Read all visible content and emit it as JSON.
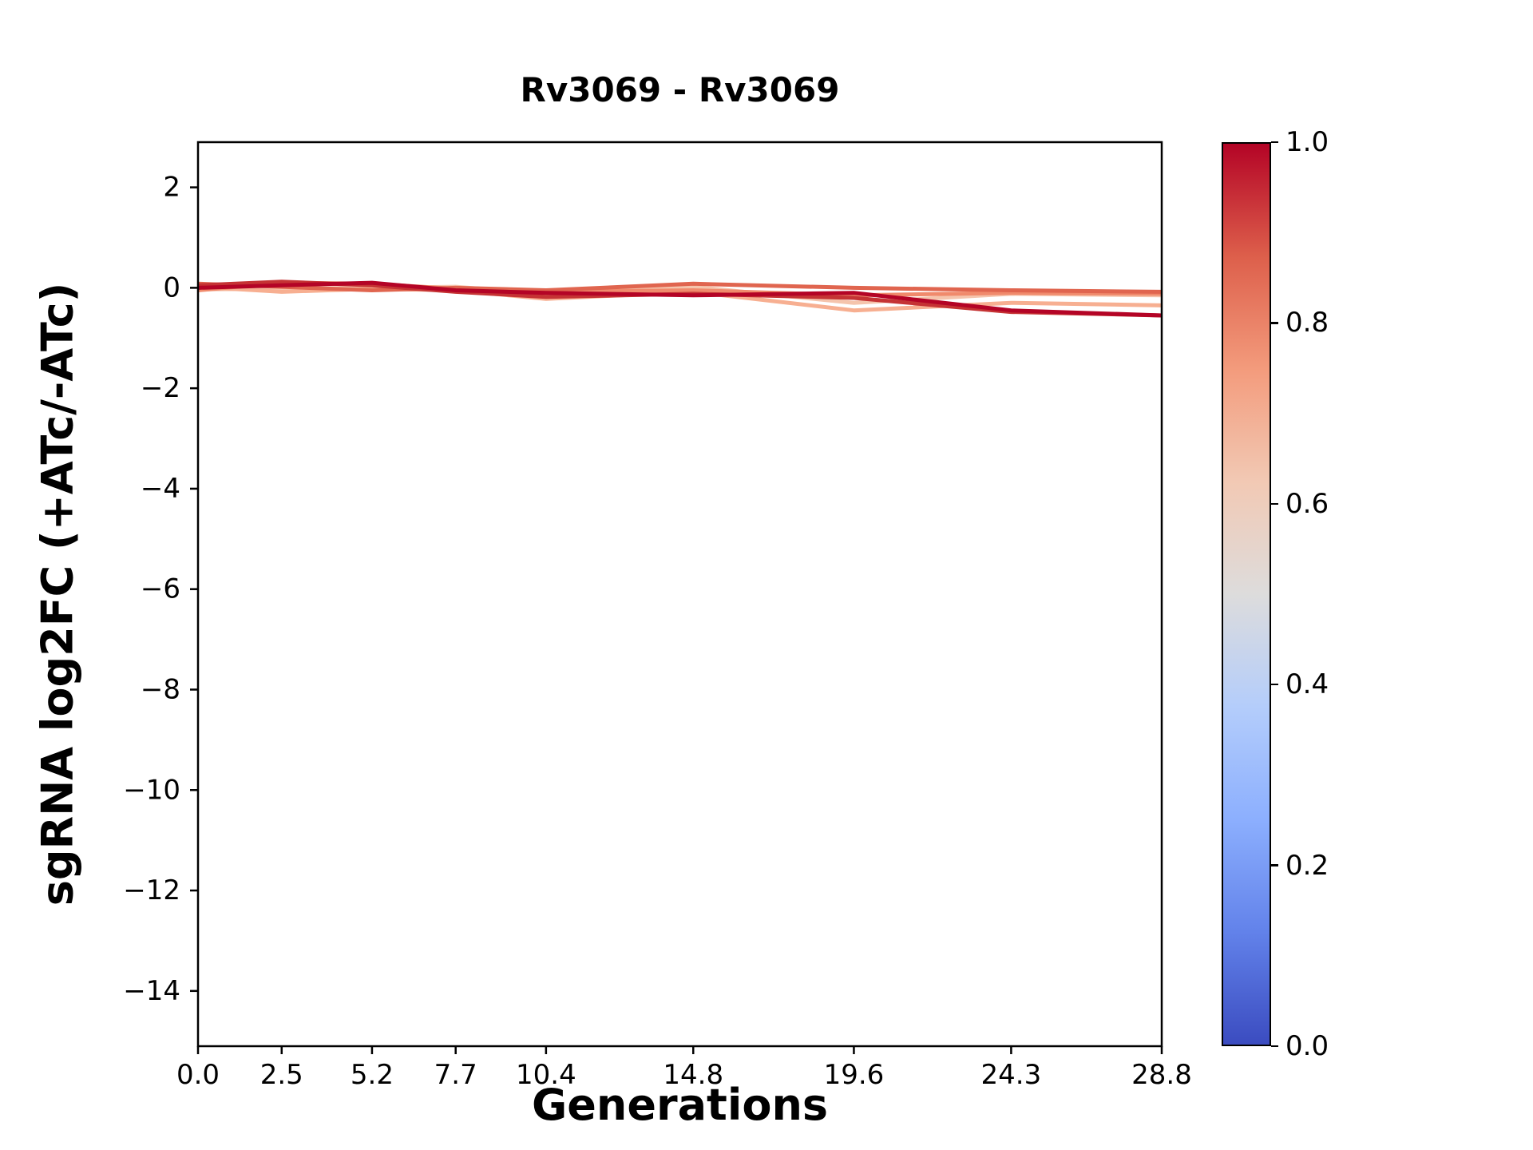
{
  "chart_data": {
    "type": "line",
    "title": "Rv3069 - Rv3069",
    "xlabel": "Generations",
    "ylabel": "sgRNA log2FC (+ATc/-ATc)",
    "x": [
      0.0,
      2.5,
      5.2,
      7.7,
      10.4,
      14.8,
      19.6,
      24.3,
      28.8
    ],
    "xlim": [
      0.0,
      28.8
    ],
    "ylim": [
      -15.1,
      2.9
    ],
    "grid": false,
    "xtick_values": [
      0.0,
      2.5,
      5.2,
      7.7,
      10.4,
      14.8,
      19.6,
      24.3,
      28.8
    ],
    "xtick_labels": [
      "0.0",
      "2.5",
      "5.2",
      "7.7",
      "10.4",
      "14.8",
      "19.6",
      "24.3",
      "28.8"
    ],
    "ytick_values": [
      2,
      0,
      -2,
      -4,
      -6,
      -8,
      -10,
      -12,
      -14
    ],
    "ytick_labels": [
      "2",
      "0",
      "−2",
      "−4",
      "−6",
      "−8",
      "−10",
      "−12",
      "−14"
    ],
    "series": [
      {
        "name": "line-1",
        "colormap_value": 0.63,
        "color": "#f5c4ac",
        "y": [
          -0.03,
          -0.02,
          0.0,
          0.02,
          -0.12,
          0.02,
          -0.3,
          -0.12,
          -0.15
        ]
      },
      {
        "name": "line-2",
        "colormap_value": 0.7,
        "color": "#f7af91",
        "y": [
          0.02,
          -0.08,
          -0.02,
          -0.05,
          -0.22,
          -0.08,
          -0.45,
          -0.3,
          -0.35
        ]
      },
      {
        "name": "line-3",
        "colormap_value": 0.78,
        "color": "#f08a6c",
        "y": [
          -0.05,
          0.1,
          0.08,
          -0.02,
          -0.08,
          -0.05,
          -0.15,
          -0.1,
          -0.12
        ]
      },
      {
        "name": "line-4",
        "colormap_value": 0.85,
        "color": "#e0654f",
        "y": [
          0.08,
          0.02,
          -0.05,
          0.0,
          -0.05,
          0.08,
          0.0,
          -0.05,
          -0.08
        ]
      },
      {
        "name": "line-5",
        "colormap_value": 0.93,
        "color": "#c53334",
        "y": [
          0.05,
          0.12,
          0.05,
          -0.08,
          -0.18,
          -0.12,
          -0.2,
          -0.48,
          -0.55
        ]
      },
      {
        "name": "line-6",
        "colormap_value": 1.0,
        "color": "#b40426",
        "y": [
          0.0,
          0.05,
          0.1,
          -0.05,
          -0.1,
          -0.15,
          -0.1,
          -0.45,
          -0.55
        ]
      }
    ],
    "colorbar": {
      "min": 0.0,
      "max": 1.0,
      "colormap": "coolwarm",
      "tick_values": [
        1.0,
        0.8,
        0.6,
        0.4,
        0.2,
        0.0
      ],
      "tick_labels": [
        "1.0",
        "0.8",
        "0.6",
        "0.4",
        "0.2",
        "0.0"
      ],
      "colors": [
        "#3b4cc0",
        "#6282ea",
        "#8caffe",
        "#b4cdfb",
        "#dddcdc",
        "#f2c9b4",
        "#f39b7c",
        "#dd5f4b",
        "#b40426"
      ]
    }
  }
}
